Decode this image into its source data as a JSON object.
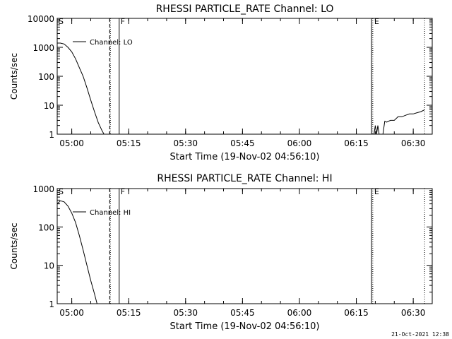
{
  "footer_timestamp": "21-Oct-2021 12:38",
  "chart_data": [
    {
      "type": "line",
      "title": "RHESSI PARTICLE_RATE Channel: LO",
      "xlabel": "Start Time (19-Nov-02 04:56:10)",
      "ylabel": "Counts/sec",
      "y_scale": "log",
      "ylim": [
        1,
        10000
      ],
      "yticks": [
        1,
        10,
        100,
        1000,
        10000
      ],
      "ytick_labels": [
        "1",
        "10",
        "100",
        "1000",
        "10000"
      ],
      "xlim": [
        "04:56:10",
        "06:35:00"
      ],
      "xticks": [
        "05:00",
        "05:15",
        "05:30",
        "05:45",
        "06:00",
        "06:15",
        "06:30"
      ],
      "legend": {
        "label": "Channel: LO",
        "position": "top-left"
      },
      "markers": [
        {
          "label": "S",
          "time": "04:56:10",
          "style": "none"
        },
        {
          "label": "",
          "time": "05:10:00",
          "style": "dashed"
        },
        {
          "label": "",
          "time": "05:10:10",
          "style": "dotted"
        },
        {
          "label": "F",
          "time": "05:12:30",
          "style": "solid"
        },
        {
          "label": "",
          "time": "06:19:00",
          "style": "solid"
        },
        {
          "label": "E",
          "time": "06:19:20",
          "style": "dotted"
        },
        {
          "label": "",
          "time": "06:33:00",
          "style": "dotted"
        }
      ],
      "series": [
        {
          "name": "Channel: LO",
          "segments": [
            [
              [
                "04:56:10",
                1400
              ],
              [
                "04:57:00",
                1400
              ],
              [
                "04:58:00",
                1300
              ],
              [
                "04:59:00",
                1000
              ],
              [
                "05:00:00",
                700
              ],
              [
                "05:01:00",
                400
              ],
              [
                "05:02:00",
                200
              ],
              [
                "05:03:00",
                100
              ],
              [
                "05:04:00",
                40
              ],
              [
                "05:05:00",
                15
              ],
              [
                "05:06:00",
                6
              ],
              [
                "05:07:00",
                2.5
              ],
              [
                "05:08:00",
                1.3
              ],
              [
                "05:08:30",
                1
              ]
            ],
            [
              [
                "06:19:40",
                1
              ],
              [
                "06:20:00",
                2
              ],
              [
                "06:20:20",
                1
              ],
              [
                "06:20:40",
                2
              ],
              [
                "06:21:00",
                1
              ],
              [
                "06:22:00",
                1
              ],
              [
                "06:22:30",
                2.8
              ],
              [
                "06:23:00",
                2.6
              ],
              [
                "06:24:00",
                3
              ],
              [
                "06:25:00",
                3
              ],
              [
                "06:26:00",
                4
              ],
              [
                "06:27:00",
                4
              ],
              [
                "06:28:00",
                4.5
              ],
              [
                "06:29:00",
                5
              ],
              [
                "06:30:00",
                5
              ],
              [
                "06:31:00",
                5.5
              ],
              [
                "06:32:00",
                6
              ],
              [
                "06:33:00",
                7
              ]
            ]
          ]
        }
      ]
    },
    {
      "type": "line",
      "title": "RHESSI PARTICLE_RATE Channel: HI",
      "xlabel": "Start Time (19-Nov-02 04:56:10)",
      "ylabel": "Counts/sec",
      "y_scale": "log",
      "ylim": [
        1,
        1000
      ],
      "yticks": [
        1,
        10,
        100,
        1000
      ],
      "ytick_labels": [
        "1",
        "10",
        "100",
        "1000"
      ],
      "xlim": [
        "04:56:10",
        "06:35:00"
      ],
      "xticks": [
        "05:00",
        "05:15",
        "05:30",
        "05:45",
        "06:00",
        "06:15",
        "06:30"
      ],
      "legend": {
        "label": "Channel: HI",
        "position": "top-left"
      },
      "markers": [
        {
          "label": "S",
          "time": "04:56:10",
          "style": "none"
        },
        {
          "label": "",
          "time": "05:10:00",
          "style": "dashed"
        },
        {
          "label": "",
          "time": "05:10:10",
          "style": "dotted"
        },
        {
          "label": "F",
          "time": "05:12:30",
          "style": "solid"
        },
        {
          "label": "",
          "time": "06:19:00",
          "style": "solid"
        },
        {
          "label": "E",
          "time": "06:19:20",
          "style": "dotted"
        },
        {
          "label": "",
          "time": "06:33:00",
          "style": "dotted"
        }
      ],
      "series": [
        {
          "name": "Channel: HI",
          "segments": [
            [
              [
                "04:56:10",
                400
              ],
              [
                "04:57:00",
                480
              ],
              [
                "04:58:00",
                450
              ],
              [
                "04:59:00",
                350
              ],
              [
                "05:00:00",
                230
              ],
              [
                "05:01:00",
                130
              ],
              [
                "05:02:00",
                60
              ],
              [
                "05:03:00",
                25
              ],
              [
                "05:04:00",
                10
              ],
              [
                "05:05:00",
                4
              ],
              [
                "05:06:00",
                1.8
              ],
              [
                "05:06:40",
                1
              ]
            ]
          ]
        }
      ]
    }
  ]
}
